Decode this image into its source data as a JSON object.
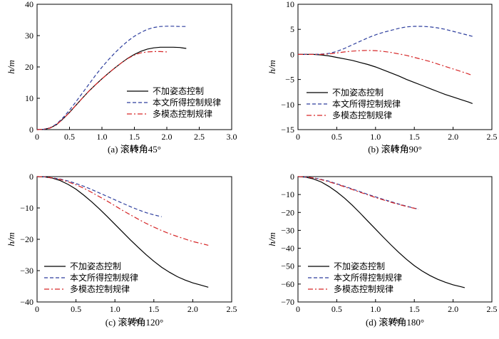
{
  "legend_labels": [
    "不加姿态控制",
    "本文所得控制规律",
    "多模态控制规律"
  ],
  "series_colors": [
    "#000000",
    "#2e3f9e",
    "#d62728"
  ],
  "chart_data": [
    {
      "type": "line",
      "caption": "(a) 滚转角45°",
      "xlabel": "t/s",
      "ylabel": "h/m",
      "xlim": [
        0,
        3.0
      ],
      "ylim": [
        0,
        40
      ],
      "xticks": [
        "0",
        "0.5",
        "1.0",
        "1.5",
        "2.0",
        "2.5",
        "3.0"
      ],
      "yticks": [
        "0",
        "10",
        "20",
        "30",
        "40"
      ],
      "legend_position": "lower-right",
      "series": [
        {
          "name": "不加姿态控制",
          "x": [
            0,
            0.1,
            0.2,
            0.3,
            0.4,
            0.5,
            0.6,
            0.7,
            0.8,
            0.9,
            1.0,
            1.1,
            1.2,
            1.3,
            1.4,
            1.5,
            1.6,
            1.7,
            1.8,
            1.9,
            2.0,
            2.1,
            2.2,
            2.3
          ],
          "y": [
            0,
            0.1,
            0.5,
            1.6,
            3.4,
            5.5,
            7.8,
            10.1,
            12.3,
            14.3,
            16.2,
            18.0,
            19.7,
            21.3,
            22.8,
            24.0,
            25.0,
            25.7,
            26.1,
            26.3,
            26.3,
            26.3,
            26.2,
            25.9
          ]
        },
        {
          "name": "本文所得控制规律",
          "x": [
            0,
            0.1,
            0.2,
            0.3,
            0.4,
            0.5,
            0.6,
            0.7,
            0.8,
            0.9,
            1.0,
            1.1,
            1.2,
            1.3,
            1.4,
            1.5,
            1.6,
            1.7,
            1.8,
            1.9,
            2.0,
            2.1,
            2.2,
            2.3
          ],
          "y": [
            0,
            0.1,
            0.6,
            1.8,
            3.8,
            6.2,
            8.9,
            11.7,
            14.5,
            17.3,
            19.9,
            22.3,
            24.5,
            26.5,
            28.3,
            29.8,
            31.0,
            32.0,
            32.6,
            32.9,
            33.0,
            33.0,
            32.9,
            32.9
          ]
        },
        {
          "name": "多模态控制规律",
          "x": [
            0,
            0.1,
            0.2,
            0.3,
            0.4,
            0.5,
            0.6,
            0.7,
            0.8,
            0.9,
            1.0,
            1.1,
            1.2,
            1.3,
            1.4,
            1.5,
            1.6,
            1.7,
            1.8,
            1.9,
            2.0
          ],
          "y": [
            0,
            0.1,
            0.5,
            1.6,
            3.4,
            5.5,
            7.8,
            10.1,
            12.3,
            14.3,
            16.2,
            18.0,
            19.7,
            21.3,
            22.7,
            23.8,
            24.5,
            24.8,
            24.9,
            24.9,
            24.8
          ]
        }
      ]
    },
    {
      "type": "line",
      "caption": "(b) 滚转角90°",
      "xlabel": "t/s",
      "ylabel": "h/m",
      "xlim": [
        0,
        2.5
      ],
      "ylim": [
        -15,
        10
      ],
      "xticks": [
        "0",
        "0.5",
        "1.0",
        "1.5",
        "2.0",
        "2.5"
      ],
      "yticks": [
        "−15",
        "−10",
        "−5",
        "0",
        "5",
        "10"
      ],
      "legend_position": "lower-right",
      "series": [
        {
          "name": "不加姿态控制",
          "x": [
            0,
            0.1,
            0.2,
            0.3,
            0.4,
            0.5,
            0.6,
            0.7,
            0.8,
            0.9,
            1.0,
            1.1,
            1.2,
            1.3,
            1.4,
            1.5,
            1.6,
            1.7,
            1.8,
            1.9,
            2.0,
            2.1,
            2.2,
            2.25
          ],
          "y": [
            0,
            0,
            0,
            -0.1,
            -0.3,
            -0.6,
            -0.9,
            -1.2,
            -1.6,
            -2.0,
            -2.5,
            -3.1,
            -3.7,
            -4.3,
            -5.0,
            -5.6,
            -6.2,
            -6.8,
            -7.4,
            -8.0,
            -8.5,
            -9.0,
            -9.5,
            -9.8
          ]
        },
        {
          "name": "本文所得控制规律",
          "x": [
            0,
            0.1,
            0.2,
            0.3,
            0.4,
            0.5,
            0.6,
            0.7,
            0.8,
            0.9,
            1.0,
            1.1,
            1.2,
            1.3,
            1.4,
            1.5,
            1.6,
            1.7,
            1.8,
            1.9,
            2.0,
            2.1,
            2.2,
            2.25
          ],
          "y": [
            0,
            0,
            0,
            0.05,
            0.2,
            0.6,
            1.2,
            1.9,
            2.6,
            3.3,
            3.9,
            4.4,
            4.8,
            5.2,
            5.5,
            5.6,
            5.6,
            5.5,
            5.3,
            5.0,
            4.6,
            4.2,
            3.8,
            3.6
          ]
        },
        {
          "name": "多模态控制规律",
          "x": [
            0,
            0.1,
            0.2,
            0.3,
            0.4,
            0.5,
            0.6,
            0.7,
            0.8,
            0.9,
            1.0,
            1.1,
            1.2,
            1.3,
            1.4,
            1.5,
            1.6,
            1.7,
            1.8,
            1.9,
            2.0,
            2.1,
            2.2,
            2.25
          ],
          "y": [
            0,
            0,
            0,
            0,
            0.1,
            0.3,
            0.5,
            0.65,
            0.75,
            0.8,
            0.75,
            0.6,
            0.4,
            0.1,
            -0.2,
            -0.6,
            -1.0,
            -1.4,
            -1.9,
            -2.4,
            -2.9,
            -3.4,
            -3.9,
            -4.2
          ]
        }
      ]
    },
    {
      "type": "line",
      "caption": "(c) 滚转角120°",
      "xlabel": "t/s",
      "ylabel": "h/m",
      "xlim": [
        0,
        2.5
      ],
      "ylim": [
        -40,
        0
      ],
      "xticks": [
        "0",
        "0.5",
        "1.0",
        "1.5",
        "2.0",
        "2.5"
      ],
      "yticks": [
        "−40",
        "−30",
        "−20",
        "−10",
        "0"
      ],
      "legend_position": "lower-left",
      "series": [
        {
          "name": "不加姿态控制",
          "x": [
            0,
            0.1,
            0.2,
            0.3,
            0.4,
            0.5,
            0.6,
            0.7,
            0.8,
            0.9,
            1.0,
            1.1,
            1.2,
            1.3,
            1.4,
            1.5,
            1.6,
            1.7,
            1.8,
            1.9,
            2.0,
            2.1,
            2.2
          ],
          "y": [
            0,
            -0.1,
            -0.5,
            -1.3,
            -2.5,
            -4.0,
            -5.9,
            -8.0,
            -10.3,
            -12.7,
            -15.2,
            -17.7,
            -20.2,
            -22.6,
            -24.9,
            -27.0,
            -28.9,
            -30.5,
            -31.9,
            -33.0,
            -33.9,
            -34.6,
            -35.3
          ]
        },
        {
          "name": "本文所得控制规律",
          "x": [
            0,
            0.1,
            0.2,
            0.3,
            0.4,
            0.5,
            0.6,
            0.7,
            0.8,
            0.9,
            1.0,
            1.1,
            1.2,
            1.3,
            1.4,
            1.5,
            1.6
          ],
          "y": [
            0,
            -0.1,
            -0.4,
            -0.8,
            -1.4,
            -2.2,
            -3.1,
            -4.1,
            -5.2,
            -6.3,
            -7.4,
            -8.5,
            -9.6,
            -10.6,
            -11.5,
            -12.2,
            -12.8
          ]
        },
        {
          "name": "多模态控制规律",
          "x": [
            0,
            0.1,
            0.2,
            0.3,
            0.4,
            0.5,
            0.6,
            0.7,
            0.8,
            0.9,
            1.0,
            1.1,
            1.2,
            1.3,
            1.4,
            1.5,
            1.6,
            1.7,
            1.8,
            1.9,
            2.0,
            2.1,
            2.2
          ],
          "y": [
            0,
            -0.1,
            -0.4,
            -0.9,
            -1.7,
            -2.6,
            -3.7,
            -5.0,
            -6.4,
            -7.8,
            -9.3,
            -10.8,
            -12.2,
            -13.6,
            -14.9,
            -16.1,
            -17.2,
            -18.2,
            -19.1,
            -19.9,
            -20.7,
            -21.3,
            -21.9
          ]
        }
      ]
    },
    {
      "type": "line",
      "caption": "(d) 滚转角180°",
      "xlabel": "t/s",
      "ylabel": "h/m",
      "xlim": [
        0,
        2.5
      ],
      "ylim": [
        -70,
        0
      ],
      "xticks": [
        "0",
        "0.5",
        "1.0",
        "1.5",
        "2.0",
        "2.5"
      ],
      "yticks": [
        "−70",
        "−60",
        "−50",
        "−40",
        "−30",
        "−20",
        "−10",
        "0"
      ],
      "legend_position": "lower-left",
      "series": [
        {
          "name": "不加姿态控制",
          "x": [
            0,
            0.1,
            0.2,
            0.3,
            0.4,
            0.5,
            0.6,
            0.7,
            0.8,
            0.9,
            1.0,
            1.1,
            1.2,
            1.3,
            1.4,
            1.5,
            1.6,
            1.7,
            1.8,
            1.9,
            2.0,
            2.1,
            2.15
          ],
          "y": [
            0,
            -0.3,
            -1.3,
            -3.0,
            -5.5,
            -8.5,
            -12.0,
            -16.0,
            -20.3,
            -24.8,
            -29.3,
            -33.8,
            -38.2,
            -42.3,
            -46.2,
            -49.7,
            -52.7,
            -55.2,
            -57.3,
            -59.0,
            -60.4,
            -61.5,
            -62.0
          ]
        },
        {
          "name": "本文所得控制规律",
          "x": [
            0,
            0.1,
            0.2,
            0.3,
            0.4,
            0.5,
            0.6,
            0.7,
            0.8,
            0.9,
            1.0,
            1.1,
            1.2,
            1.3,
            1.4,
            1.5,
            1.55
          ],
          "y": [
            0,
            -0.2,
            -0.7,
            -1.5,
            -2.6,
            -4.0,
            -5.4,
            -6.9,
            -8.4,
            -9.9,
            -11.3,
            -12.7,
            -14.0,
            -15.3,
            -16.5,
            -17.6,
            -18.1
          ]
        },
        {
          "name": "多模态控制规律",
          "x": [
            0,
            0.1,
            0.2,
            0.3,
            0.4,
            0.5,
            0.6,
            0.7,
            0.8,
            0.9,
            1.0,
            1.1,
            1.2,
            1.3,
            1.4,
            1.5,
            1.55
          ],
          "y": [
            0,
            -0.2,
            -0.8,
            -1.7,
            -2.9,
            -4.2,
            -5.7,
            -7.2,
            -8.7,
            -10.2,
            -11.7,
            -13.0,
            -14.3,
            -15.5,
            -16.7,
            -17.7,
            -18.2
          ]
        }
      ]
    }
  ]
}
